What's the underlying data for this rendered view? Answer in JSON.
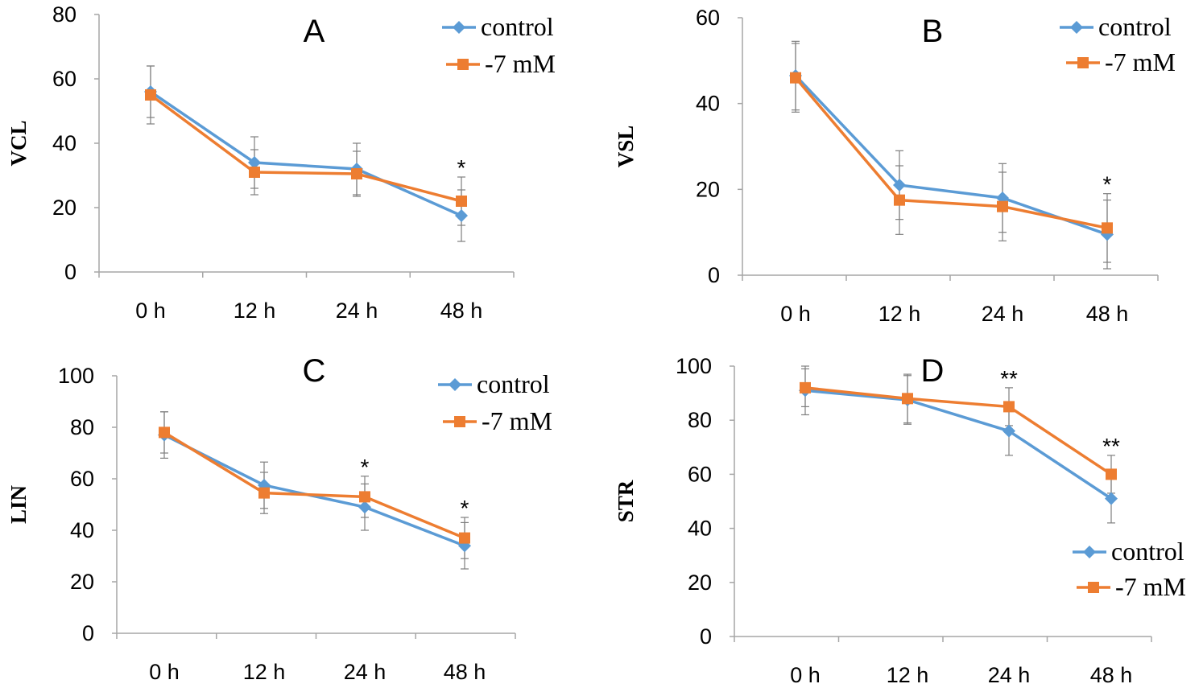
{
  "colors": {
    "control": "#5b9bd5",
    "treatment": "#ed7d31",
    "axis": "#a6a6a6",
    "errorbar": "#7f7f7f"
  },
  "chart_data": [
    {
      "type": "line",
      "panel_label": "A",
      "ylabel": "VCL",
      "categories": [
        "0 h",
        "12 h",
        "24 h",
        "48 h"
      ],
      "ylim": [
        0,
        80
      ],
      "yticks": [
        0,
        20,
        40,
        60,
        80
      ],
      "legend_position": "top-right",
      "series": [
        {
          "name": "control",
          "marker": "diamond",
          "values": [
            56,
            34,
            32,
            17.5
          ],
          "errors": [
            8,
            8,
            8,
            8
          ]
        },
        {
          "name": "-7 mM",
          "marker": "square",
          "values": [
            55,
            31,
            30.5,
            22
          ],
          "errors": [
            9,
            7,
            7,
            7.5
          ]
        }
      ],
      "annotations": [
        "",
        "",
        "",
        "*"
      ]
    },
    {
      "type": "line",
      "panel_label": "B",
      "ylabel": "VSL",
      "categories": [
        "0 h",
        "12 h",
        "24 h",
        "48 h"
      ],
      "ylim": [
        0,
        60
      ],
      "yticks": [
        0,
        20,
        40,
        60
      ],
      "legend_position": "top-right",
      "series": [
        {
          "name": "control",
          "marker": "diamond",
          "values": [
            46.5,
            21,
            18,
            9.5
          ],
          "errors": [
            8,
            8,
            8,
            8
          ]
        },
        {
          "name": "-7 mM",
          "marker": "square",
          "values": [
            46,
            17.5,
            16,
            11
          ],
          "errors": [
            8,
            8,
            8,
            8
          ]
        }
      ],
      "annotations": [
        "",
        "",
        "",
        "*"
      ]
    },
    {
      "type": "line",
      "panel_label": "C",
      "ylabel": "LIN",
      "categories": [
        "0 h",
        "12 h",
        "24 h",
        "48 h"
      ],
      "ylim": [
        0,
        100
      ],
      "yticks": [
        0,
        20,
        40,
        60,
        80,
        100
      ],
      "legend_position": "top-right",
      "series": [
        {
          "name": "control",
          "marker": "diamond",
          "values": [
            77,
            57.5,
            49,
            34
          ],
          "errors": [
            9,
            9,
            9,
            9
          ]
        },
        {
          "name": "-7 mM",
          "marker": "square",
          "values": [
            78,
            54.5,
            53,
            37
          ],
          "errors": [
            8,
            8,
            8,
            8
          ]
        }
      ],
      "annotations": [
        "",
        "",
        "*",
        "*"
      ]
    },
    {
      "type": "line",
      "panel_label": "D",
      "ylabel": "STR",
      "categories": [
        "0 h",
        "12 h",
        "24 h",
        "48 h"
      ],
      "ylim": [
        0,
        100
      ],
      "yticks": [
        0,
        20,
        40,
        60,
        80,
        100
      ],
      "legend_position": "bottom-right",
      "series": [
        {
          "name": "control",
          "marker": "diamond",
          "values": [
            91,
            87.5,
            76,
            51
          ],
          "errors": [
            9,
            9,
            9,
            9
          ]
        },
        {
          "name": "-7 mM",
          "marker": "square",
          "values": [
            92,
            88,
            85,
            60
          ],
          "errors": [
            7,
            9,
            7,
            7
          ]
        }
      ],
      "annotations": [
        "",
        "",
        "**",
        "**"
      ]
    }
  ]
}
